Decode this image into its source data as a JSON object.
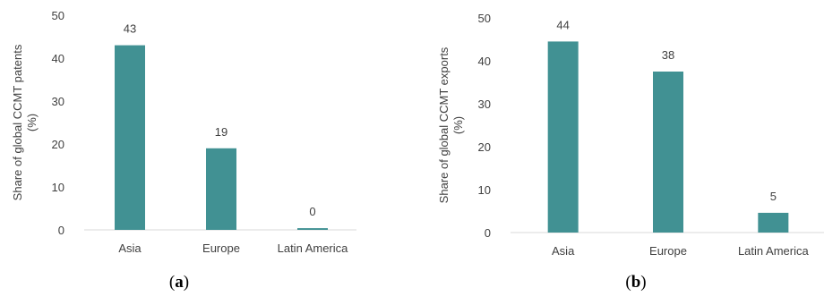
{
  "chart_data": [
    {
      "type": "bar",
      "panel_label": "a",
      "categories": [
        "Asia",
        "Europe",
        "Latin America"
      ],
      "values": [
        43,
        19,
        0.4
      ],
      "data_labels": [
        "43",
        "19",
        "0"
      ],
      "ylabel_lines": [
        "Share of global CCMT patents",
        "(%)"
      ],
      "ylim": [
        0,
        50
      ],
      "yticks": [
        0,
        10,
        20,
        30,
        40,
        50
      ],
      "bar_color": "#419193",
      "grid": false
    },
    {
      "type": "bar",
      "panel_label": "b",
      "categories": [
        "Asia",
        "Europe",
        "Latin America"
      ],
      "values": [
        44.5,
        37.5,
        4.6
      ],
      "data_labels": [
        "44",
        "38",
        "5"
      ],
      "ylabel_lines": [
        "Share of global CCMT exports",
        "(%)"
      ],
      "ylim": [
        0,
        50
      ],
      "yticks": [
        0,
        10,
        20,
        30,
        40,
        50
      ],
      "bar_color": "#419193",
      "grid": false
    }
  ]
}
